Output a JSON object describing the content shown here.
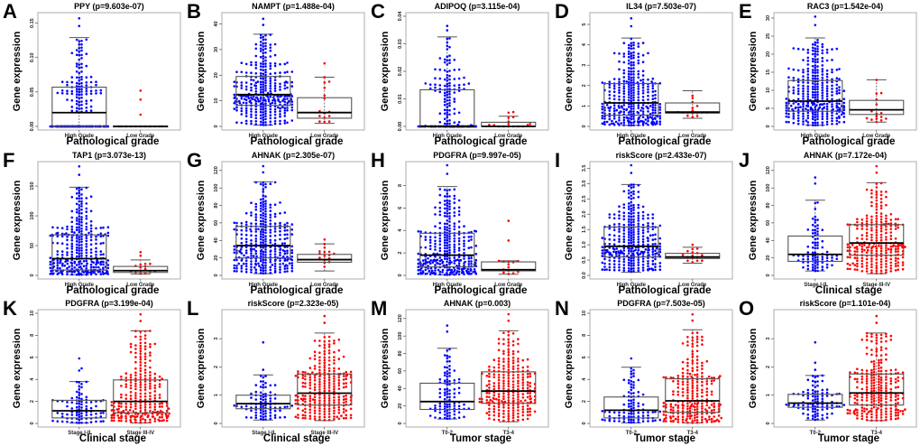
{
  "figure": {
    "ylabel": "Gene expression",
    "colors": {
      "group1": "#0000ff",
      "group2": "#ff0000",
      "box": "#555555",
      "median": "#000000",
      "frame": "#bbbbbb"
    }
  },
  "chart_data": [
    {
      "letter": "A",
      "type": "box",
      "title": "PPY (p=9.603e-07)",
      "xlabel": "Pathological grade",
      "ylabel": "Gene expression",
      "categories": [
        "High Grade",
        "Low Grade"
      ],
      "ylim": [
        0,
        0.16
      ],
      "yticks": [
        0,
        0.05,
        0.1,
        0.15
      ],
      "ytick_labels": [
        "0.00",
        "0.05",
        "0.10",
        "0.15"
      ],
      "groups": [
        {
          "name": "High Grade",
          "color": "#0000ff",
          "n": 220,
          "min": 0,
          "q1": 0,
          "median": 0.02,
          "q3": 0.057,
          "whisker_low": 0,
          "whisker_high": 0.129,
          "max": 0.157,
          "zero_heavy": true
        },
        {
          "name": "Low Grade",
          "color": "#ff0000",
          "n": 16,
          "min": 0,
          "q1": 0,
          "median": 0,
          "q3": 0,
          "whisker_low": 0,
          "whisker_high": 0,
          "max": 0.052,
          "zero_heavy": true,
          "outliers": [
            0.017,
            0.039,
            0.052
          ]
        }
      ]
    },
    {
      "letter": "B",
      "type": "box",
      "title": "NAMPT (p=1.488e-04)",
      "xlabel": "Pathological grade",
      "ylabel": "Gene expression",
      "categories": [
        "High Grade",
        "Low Grade"
      ],
      "ylim": [
        0,
        43
      ],
      "yticks": [
        0,
        10,
        20,
        30,
        40
      ],
      "ytick_labels": [
        "0",
        "10",
        "20",
        "30",
        "40"
      ],
      "groups": [
        {
          "name": "High Grade",
          "color": "#0000ff",
          "n": 330,
          "min": 0.3,
          "q1": 8.2,
          "median": 12.4,
          "q3": 19.5,
          "whisker_low": 0.5,
          "whisker_high": 36,
          "max": 42
        },
        {
          "name": "Low Grade",
          "color": "#ff0000",
          "n": 16,
          "min": 1,
          "q1": 3.2,
          "median": 5.4,
          "q3": 11.2,
          "whisker_low": 1.2,
          "whisker_high": 19.2,
          "max": 24.6,
          "outliers": [
            24.6
          ]
        }
      ]
    },
    {
      "letter": "C",
      "type": "box",
      "title": "ADIPOQ (p=3.115e-04)",
      "xlabel": "Pathological grade",
      "ylabel": "Gene expression",
      "categories": [
        "High Grade",
        "Low Grade"
      ],
      "ylim": [
        0,
        0.04
      ],
      "yticks": [
        0,
        0.01,
        0.02,
        0.03,
        0.04
      ],
      "ytick_labels": [
        "0.00",
        "0.01",
        "0.02",
        "0.03",
        "0.04"
      ],
      "groups": [
        {
          "name": "High Grade",
          "color": "#0000ff",
          "n": 200,
          "min": 0,
          "q1": 0,
          "median": 0,
          "q3": 0.0133,
          "whisker_low": 0,
          "whisker_high": 0.0325,
          "max": 0.0365,
          "zero_heavy": true
        },
        {
          "name": "Low Grade",
          "color": "#ff0000",
          "n": 16,
          "min": 0,
          "q1": 0,
          "median": 0,
          "q3": 0.0015,
          "whisker_low": 0,
          "whisker_high": 0.0037,
          "max": 0.0052,
          "zero_heavy": true,
          "outliers": [
            0.005,
            0.0052
          ]
        }
      ]
    },
    {
      "letter": "D",
      "type": "box",
      "title": "IL34 (p=7.503e-07)",
      "xlabel": "Pathological grade",
      "ylabel": "Gene expression",
      "categories": [
        "High Grade",
        "Low Grade"
      ],
      "ylim": [
        0,
        5.4
      ],
      "yticks": [
        0,
        1,
        2,
        3,
        4,
        5
      ],
      "ytick_labels": [
        "0",
        "1",
        "2",
        "3",
        "4",
        "5"
      ],
      "groups": [
        {
          "name": "High Grade",
          "color": "#0000ff",
          "n": 330,
          "min": 0.05,
          "q1": 0.55,
          "median": 1.15,
          "q3": 2.1,
          "whisker_low": 0.05,
          "whisker_high": 4.33,
          "max": 5.3
        },
        {
          "name": "Low Grade",
          "color": "#ff0000",
          "n": 16,
          "min": 0.38,
          "q1": 0.65,
          "median": 0.7,
          "q3": 1.15,
          "whisker_low": 0.4,
          "whisker_high": 1.75,
          "max": 1.75
        }
      ]
    },
    {
      "letter": "E",
      "type": "box",
      "title": "RAC3 (p=1.542e-04)",
      "xlabel": "Pathological grade",
      "ylabel": "Gene expression",
      "categories": [
        "High Grade",
        "Low Grade"
      ],
      "ylim": [
        0,
        30.5
      ],
      "yticks": [
        0,
        5,
        10,
        15,
        20,
        25,
        30
      ],
      "ytick_labels": [
        "0",
        "5",
        "10",
        "15",
        "20",
        "25",
        "30"
      ],
      "groups": [
        {
          "name": "High Grade",
          "color": "#0000ff",
          "n": 330,
          "min": 0.3,
          "q1": 4.2,
          "median": 7,
          "q3": 12.7,
          "whisker_low": 0.3,
          "whisker_high": 24.5,
          "max": 30.4
        },
        {
          "name": "Low Grade",
          "color": "#ff0000",
          "n": 16,
          "min": 1.1,
          "q1": 3.3,
          "median": 4.6,
          "q3": 7.2,
          "whisker_low": 1.2,
          "whisker_high": 12.9,
          "max": 12.9
        }
      ]
    },
    {
      "letter": "F",
      "type": "box",
      "title": "TAP1 (p=3.073e-13)",
      "xlabel": "Pathological grade",
      "ylabel": "Gene expression",
      "categories": [
        "High Grade",
        "Low Grade"
      ],
      "ylim": [
        0,
        185
      ],
      "yticks": [
        0,
        50,
        100,
        150
      ],
      "ytick_labels": [
        "0",
        "50",
        "100",
        "150"
      ],
      "groups": [
        {
          "name": "High Grade",
          "color": "#0000ff",
          "n": 330,
          "min": 1,
          "q1": 9,
          "median": 28,
          "q3": 68,
          "whisker_low": 1,
          "whisker_high": 148,
          "max": 183
        },
        {
          "name": "Low Grade",
          "color": "#ff0000",
          "n": 16,
          "min": 2,
          "q1": 5,
          "median": 8,
          "q3": 15,
          "whisker_low": 2,
          "whisker_high": 26,
          "max": 39,
          "outliers": [
            33,
            39
          ]
        }
      ]
    },
    {
      "letter": "G",
      "type": "box",
      "title": "AHNAK (p=2.305e-07)",
      "xlabel": "Pathological grade",
      "ylabel": "Gene expression",
      "categories": [
        "High Grade",
        "Low Grade"
      ],
      "ylim": [
        0,
        126
      ],
      "yticks": [
        0,
        20,
        40,
        60,
        80,
        100,
        120
      ],
      "ytick_labels": [
        "0",
        "20",
        "40",
        "60",
        "80",
        "100",
        "120"
      ],
      "groups": [
        {
          "name": "High Grade",
          "color": "#0000ff",
          "n": 330,
          "min": 2,
          "q1": 20,
          "median": 34,
          "q3": 56,
          "whisker_low": 2,
          "whisker_high": 107,
          "max": 125
        },
        {
          "name": "Low Grade",
          "color": "#ff0000",
          "n": 16,
          "min": 4,
          "q1": 15,
          "median": 18,
          "q3": 24,
          "whisker_low": 5,
          "whisker_high": 36,
          "max": 41,
          "outliers": [
            41
          ]
        }
      ]
    },
    {
      "letter": "H",
      "type": "box",
      "title": "PDGFRA (p=9.997e-05)",
      "xlabel": "Pathological grade",
      "ylabel": "Gene expression",
      "categories": [
        "High Grade",
        "Low Grade"
      ],
      "ylim": [
        0,
        9.8
      ],
      "yticks": [
        0,
        2,
        4,
        6,
        8
      ],
      "ytick_labels": [
        "0",
        "2",
        "4",
        "6",
        "8"
      ],
      "groups": [
        {
          "name": "High Grade",
          "color": "#0000ff",
          "n": 330,
          "min": 0.05,
          "q1": 0.75,
          "median": 1.8,
          "q3": 3.75,
          "whisker_low": 0.05,
          "whisker_high": 7.9,
          "max": 9.8
        },
        {
          "name": "Low Grade",
          "color": "#ff0000",
          "n": 16,
          "min": 0.1,
          "q1": 0.4,
          "median": 0.5,
          "q3": 1.2,
          "whisker_low": 0.1,
          "whisker_high": 1.3,
          "max": 4.85,
          "outliers": [
            3.1,
            4.85
          ]
        }
      ]
    },
    {
      "letter": "I",
      "type": "box",
      "title": "riskScore (p=2.433e-07)",
      "xlabel": "Pathological grade",
      "ylabel": "Gene expression",
      "categories": [
        "High Grade",
        "Low Grade"
      ],
      "ylim": [
        0,
        3.6
      ],
      "yticks": [
        0,
        0.5,
        1,
        1.5,
        2,
        2.5,
        3,
        3.5
      ],
      "ytick_labels": [
        "0.0",
        "0.5",
        "1.0",
        "1.5",
        "2.0",
        "2.5",
        "3.0",
        "3.5"
      ],
      "groups": [
        {
          "name": "High Grade",
          "color": "#0000ff",
          "n": 330,
          "min": 0.08,
          "q1": 0.6,
          "median": 0.95,
          "q3": 1.58,
          "whisker_low": 0.1,
          "whisker_high": 2.97,
          "max": 3.6
        },
        {
          "name": "Low Grade",
          "color": "#ff0000",
          "n": 16,
          "min": 0.38,
          "q1": 0.55,
          "median": 0.6,
          "q3": 0.72,
          "whisker_low": 0.4,
          "whisker_high": 0.92,
          "max": 1.0,
          "outliers": [
            1.0
          ]
        }
      ]
    },
    {
      "letter": "J",
      "type": "box",
      "title": "AHNAK (p=7.172e-04)",
      "xlabel": "Clinical stage",
      "ylabel": "Gene expression",
      "categories": [
        "Stage I-II",
        "Stage III-IV"
      ],
      "ylim": [
        0,
        126
      ],
      "yticks": [
        0,
        20,
        40,
        60,
        80,
        100,
        120
      ],
      "ytick_labels": [
        "0",
        "20",
        "40",
        "60",
        "80",
        "100",
        "120"
      ],
      "groups": [
        {
          "name": "Stage I-II",
          "color": "#0000ff",
          "n": 90,
          "min": 4,
          "q1": 16,
          "median": 24,
          "q3": 45,
          "whisker_low": 5,
          "whisker_high": 86,
          "max": 112,
          "outliers": [
            105,
            112
          ]
        },
        {
          "name": "Stage III-IV",
          "color": "#ff0000",
          "n": 260,
          "min": 2,
          "q1": 23,
          "median": 37,
          "q3": 58,
          "whisker_low": 2,
          "whisker_high": 106,
          "max": 125
        }
      ]
    },
    {
      "letter": "K",
      "type": "box",
      "title": "PDGFRA (p=3.199e-04)",
      "xlabel": "Clinical stage",
      "ylabel": "Gene expression",
      "categories": [
        "Stage I-II",
        "Stage III-IV"
      ],
      "ylim": [
        0,
        10
      ],
      "yticks": [
        0,
        2,
        4,
        6,
        8,
        10
      ],
      "ytick_labels": [
        "0",
        "2",
        "4",
        "6",
        "8",
        "10"
      ],
      "groups": [
        {
          "name": "Stage I-II",
          "color": "#0000ff",
          "n": 90,
          "min": 0.05,
          "q1": 0.5,
          "median": 1.15,
          "q3": 2.1,
          "whisker_low": 0.05,
          "whisker_high": 3.8,
          "max": 5.9,
          "outliers": [
            4.8,
            5.0,
            5.9
          ]
        },
        {
          "name": "Stage III-IV",
          "color": "#ff0000",
          "n": 260,
          "min": 0.05,
          "q1": 0.95,
          "median": 2.0,
          "q3": 3.95,
          "whisker_low": 0.05,
          "whisker_high": 8.4,
          "max": 9.9
        }
      ]
    },
    {
      "letter": "L",
      "type": "box",
      "title": "riskScore (p=2.323e-05)",
      "xlabel": "Clinical stage",
      "ylabel": "Gene expression",
      "categories": [
        "Stage I-II",
        "Stage III-IV"
      ],
      "ylim": [
        0,
        3.9
      ],
      "yticks": [
        0,
        1,
        2,
        3
      ],
      "ytick_labels": [
        "0",
        "1",
        "2",
        "3"
      ],
      "groups": [
        {
          "name": "Stage I-II",
          "color": "#0000ff",
          "n": 90,
          "min": 0.1,
          "q1": 0.52,
          "median": 0.7,
          "q3": 1.0,
          "whisker_low": 0.12,
          "whisker_high": 1.72,
          "max": 2.87,
          "outliers": [
            1.9,
            2.87
          ]
        },
        {
          "name": "Stage III-IV",
          "color": "#ff0000",
          "n": 260,
          "min": 0.08,
          "q1": 0.65,
          "median": 1.07,
          "q3": 1.75,
          "whisker_low": 0.1,
          "whisker_high": 3.2,
          "max": 3.8
        }
      ]
    },
    {
      "letter": "M",
      "type": "box",
      "title": "AHNAK (p=0.003)",
      "xlabel": "Tumor stage",
      "ylabel": "Gene expression",
      "categories": [
        "T0-2",
        "T3-4"
      ],
      "ylim": [
        0,
        126
      ],
      "yticks": [
        0,
        20,
        40,
        60,
        80,
        100,
        120
      ],
      "ytick_labels": [
        "0",
        "20",
        "40",
        "60",
        "80",
        "100",
        "120"
      ],
      "groups": [
        {
          "name": "T0-2",
          "color": "#0000ff",
          "n": 100,
          "min": 4,
          "q1": 16,
          "median": 25,
          "q3": 46,
          "whisker_low": 5,
          "whisker_high": 86,
          "max": 112,
          "outliers": [
            105,
            112
          ]
        },
        {
          "name": "T3-4",
          "color": "#ff0000",
          "n": 250,
          "min": 2,
          "q1": 23,
          "median": 37,
          "q3": 59,
          "whisker_low": 2,
          "whisker_high": 106,
          "max": 125
        }
      ]
    },
    {
      "letter": "N",
      "type": "box",
      "title": "PDGFRA (p=7.503e-05)",
      "xlabel": "Tumor stage",
      "ylabel": "Gene expression",
      "categories": [
        "T0-2",
        "T3-4"
      ],
      "ylim": [
        0,
        10
      ],
      "yticks": [
        0,
        2,
        4,
        6,
        8,
        10
      ],
      "ytick_labels": [
        "0",
        "2",
        "4",
        "6",
        "8",
        "10"
      ],
      "groups": [
        {
          "name": "T0-2",
          "color": "#0000ff",
          "n": 100,
          "min": 0.05,
          "q1": 0.5,
          "median": 1.2,
          "q3": 2.4,
          "whisker_low": 0.05,
          "whisker_high": 5.1,
          "max": 5.9,
          "outliers": [
            5.9
          ]
        },
        {
          "name": "T3-4",
          "color": "#ff0000",
          "n": 250,
          "min": 0.05,
          "q1": 1.0,
          "median": 2.05,
          "q3": 4.05,
          "whisker_low": 0.05,
          "whisker_high": 8.5,
          "max": 9.9
        }
      ]
    },
    {
      "letter": "O",
      "type": "box",
      "title": "riskScore (p=1.101e-04)",
      "xlabel": "Tumor stage",
      "ylabel": "Gene expression",
      "categories": [
        "T0-2",
        "T3-4"
      ],
      "ylim": [
        0,
        3.9
      ],
      "yticks": [
        0,
        1,
        2,
        3
      ],
      "ytick_labels": [
        "0",
        "1",
        "2",
        "3"
      ],
      "groups": [
        {
          "name": "T0-2",
          "color": "#0000ff",
          "n": 100,
          "min": 0.1,
          "q1": 0.57,
          "median": 0.72,
          "q3": 1.03,
          "whisker_low": 0.12,
          "whisker_high": 1.7,
          "max": 2.87,
          "outliers": [
            1.9,
            2.15,
            2.87
          ]
        },
        {
          "name": "T3-4",
          "color": "#ff0000",
          "n": 250,
          "min": 0.08,
          "q1": 0.65,
          "median": 1.08,
          "q3": 1.75,
          "whisker_low": 0.1,
          "whisker_high": 3.2,
          "max": 3.8
        }
      ]
    }
  ]
}
